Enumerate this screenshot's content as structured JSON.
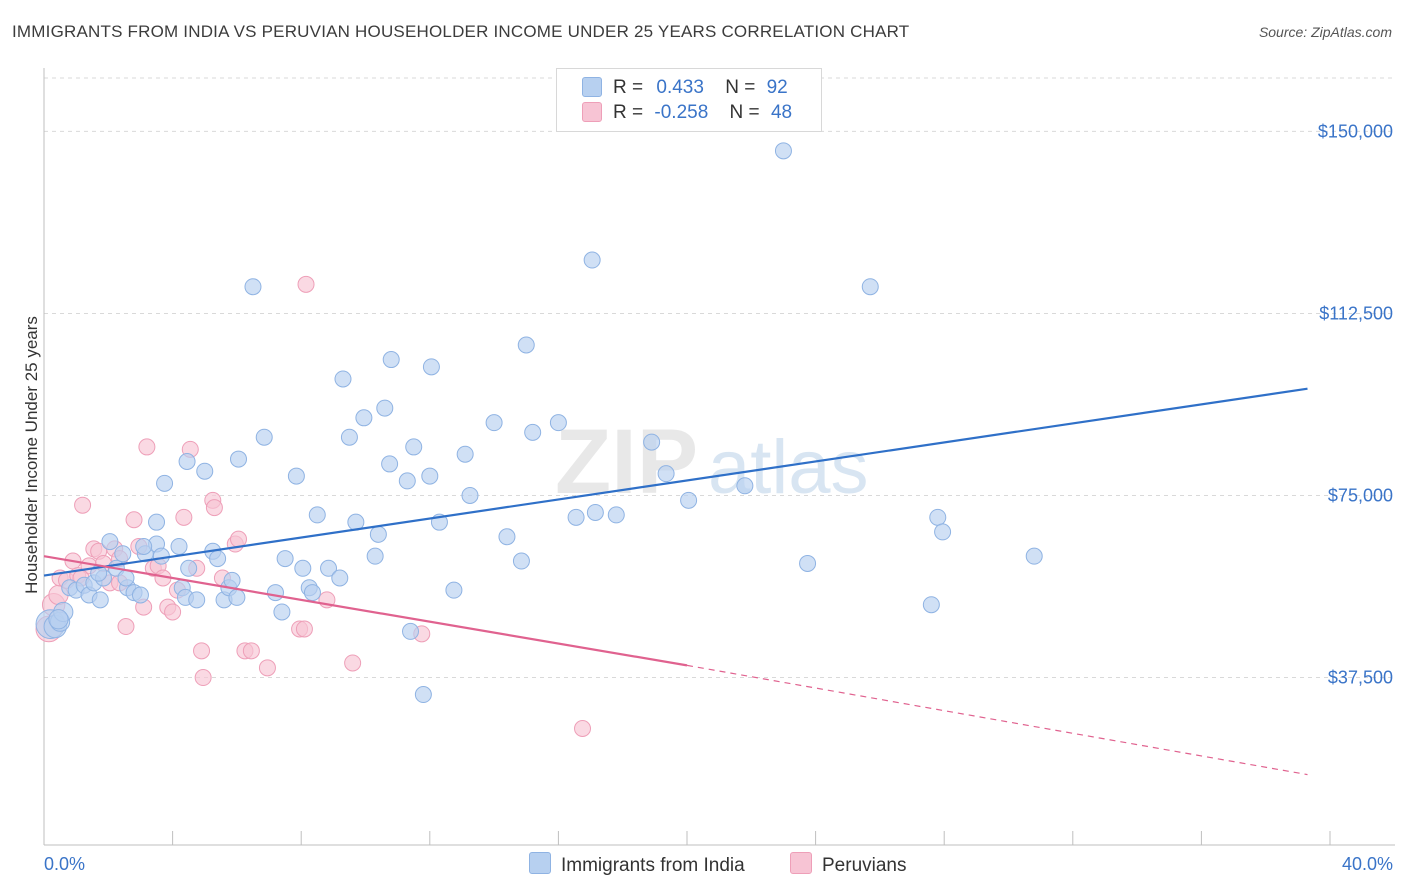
{
  "title": "IMMIGRANTS FROM INDIA VS PERUVIAN HOUSEHOLDER INCOME UNDER 25 YEARS CORRELATION CHART",
  "source": "Source: ZipAtlas.com",
  "watermark": {
    "zip": "ZIP",
    "atlas": "atlas"
  },
  "legend": {
    "rows": [
      {
        "r_label": "R =",
        "r_value": "0.433",
        "n_label": "N =",
        "n_value": "92"
      },
      {
        "r_label": "R =",
        "r_value": "-0.258",
        "n_label": "N =",
        "n_value": "48"
      }
    ]
  },
  "colors": {
    "india_fill": "#b7d0f0",
    "india_stroke": "#8fb3e3",
    "india_line": "#2f70c8",
    "peru_fill": "#f7c4d4",
    "peru_stroke": "#ee9fb8",
    "peru_line": "#e0628f",
    "tick_label": "#3a74c8",
    "grid": "#d9d9d9"
  },
  "chart_data": {
    "type": "scatter",
    "title": "IMMIGRANTS FROM INDIA VS PERUVIAN HOUSEHOLDER INCOME UNDER 25 YEARS CORRELATION CHART",
    "xlabel": "",
    "ylabel": "Householder Income Under 25 years",
    "xlim": [
      0,
      40
    ],
    "ylim": [
      3000,
      161000
    ],
    "x_tick_labels": [
      "0.0%",
      "40.0%"
    ],
    "y_ticks": [
      37500,
      75000,
      112500,
      150000
    ],
    "y_tick_labels": [
      "$37,500",
      "$75,000",
      "$112,500",
      "$150,000"
    ],
    "grid": true,
    "legend_position": "top-center",
    "series": [
      {
        "name": "Immigrants from India",
        "r": 0.433,
        "n": 92,
        "trend": {
          "x0": 0,
          "y0": 58500,
          "x1": 39.3,
          "y1": 97000
        },
        "points": [
          [
            0.2,
            48500,
            18
          ],
          [
            0.35,
            48000,
            14
          ],
          [
            0.5,
            49000,
            12
          ],
          [
            0.6,
            51000,
            12
          ],
          [
            0.8,
            56000,
            10
          ],
          [
            1.0,
            55500,
            10
          ],
          [
            1.25,
            56500,
            10
          ],
          [
            1.4,
            54500,
            10
          ],
          [
            1.55,
            57000,
            10
          ],
          [
            1.75,
            53500,
            10
          ],
          [
            1.85,
            58000,
            10
          ],
          [
            2.05,
            65500,
            10
          ],
          [
            2.25,
            60000,
            10
          ],
          [
            2.45,
            63000,
            10
          ],
          [
            2.6,
            56000,
            10
          ],
          [
            2.8,
            55000,
            10
          ],
          [
            3.0,
            54500,
            10
          ],
          [
            3.15,
            63000,
            10
          ],
          [
            3.5,
            65000,
            10
          ],
          [
            3.5,
            69500,
            10
          ],
          [
            3.65,
            62500,
            10
          ],
          [
            3.75,
            77500,
            10
          ],
          [
            4.2,
            64500,
            10
          ],
          [
            4.3,
            56000,
            10
          ],
          [
            4.4,
            54000,
            10
          ],
          [
            4.5,
            60000,
            10
          ],
          [
            4.45,
            82000,
            10
          ],
          [
            4.75,
            53500,
            10
          ],
          [
            5.0,
            80000,
            10
          ],
          [
            5.25,
            63500,
            10
          ],
          [
            5.4,
            62000,
            10
          ],
          [
            5.6,
            53500,
            10
          ],
          [
            5.75,
            56000,
            10
          ],
          [
            5.85,
            57500,
            10
          ],
          [
            6.0,
            54000,
            10
          ],
          [
            6.05,
            82500,
            10
          ],
          [
            6.5,
            118000,
            10
          ],
          [
            6.85,
            87000,
            10
          ],
          [
            7.2,
            55000,
            10
          ],
          [
            7.4,
            51000,
            10
          ],
          [
            7.5,
            62000,
            10
          ],
          [
            7.85,
            79000,
            10
          ],
          [
            8.05,
            60000,
            10
          ],
          [
            8.25,
            56000,
            10
          ],
          [
            8.35,
            55000,
            10
          ],
          [
            8.5,
            71000,
            10
          ],
          [
            8.85,
            60000,
            10
          ],
          [
            9.2,
            58000,
            10
          ],
          [
            9.3,
            99000,
            10
          ],
          [
            9.5,
            87000,
            10
          ],
          [
            9.7,
            69500,
            10
          ],
          [
            9.95,
            91000,
            10
          ],
          [
            10.3,
            62500,
            10
          ],
          [
            10.4,
            67000,
            10
          ],
          [
            10.6,
            93000,
            10
          ],
          [
            10.8,
            103000,
            10
          ],
          [
            10.75,
            81500,
            10
          ],
          [
            11.3,
            78000,
            10
          ],
          [
            11.4,
            47000,
            10
          ],
          [
            11.5,
            85000,
            10
          ],
          [
            11.8,
            34000,
            10
          ],
          [
            12.0,
            79000,
            10
          ],
          [
            12.05,
            101500,
            10
          ],
          [
            12.3,
            69500,
            10
          ],
          [
            12.75,
            55500,
            10
          ],
          [
            13.1,
            83500,
            10
          ],
          [
            13.25,
            75000,
            10
          ],
          [
            14.0,
            90000,
            10
          ],
          [
            14.4,
            66500,
            10
          ],
          [
            14.85,
            61500,
            10
          ],
          [
            15.0,
            106000,
            10
          ],
          [
            15.2,
            88000,
            10
          ],
          [
            16.0,
            90000,
            10
          ],
          [
            16.55,
            70500,
            10
          ],
          [
            17.05,
            123500,
            10
          ],
          [
            17.15,
            71500,
            10
          ],
          [
            17.8,
            71000,
            10
          ],
          [
            18.9,
            86000,
            10
          ],
          [
            19.35,
            79500,
            10
          ],
          [
            20.05,
            74000,
            10
          ],
          [
            21.8,
            77000,
            10
          ],
          [
            23.0,
            146000,
            10
          ],
          [
            23.75,
            61000,
            10
          ],
          [
            25.7,
            118000,
            10
          ],
          [
            27.6,
            52500,
            10
          ],
          [
            27.8,
            70500,
            10
          ],
          [
            27.95,
            67500,
            10
          ],
          [
            30.8,
            62500,
            10
          ],
          [
            0.45,
            49500,
            12
          ],
          [
            1.7,
            59000,
            10
          ],
          [
            2.55,
            58000,
            10
          ],
          [
            3.1,
            64500,
            10
          ]
        ]
      },
      {
        "name": "Peruvians",
        "r": -0.258,
        "n": 48,
        "trend": {
          "x0": 0,
          "y0": 62500,
          "x1": 20,
          "y1": 40000,
          "x2": 39.3,
          "y2": 17500
        },
        "points": [
          [
            0.15,
            47500,
            16
          ],
          [
            0.3,
            52500,
            14
          ],
          [
            0.45,
            54500,
            12
          ],
          [
            0.5,
            58000,
            10
          ],
          [
            0.7,
            57500,
            10
          ],
          [
            0.9,
            61500,
            10
          ],
          [
            1.05,
            58500,
            10
          ],
          [
            1.2,
            73000,
            10
          ],
          [
            1.4,
            60500,
            10
          ],
          [
            1.55,
            64000,
            10
          ],
          [
            1.7,
            63500,
            10
          ],
          [
            1.85,
            61000,
            10
          ],
          [
            2.05,
            57000,
            10
          ],
          [
            2.2,
            64000,
            10
          ],
          [
            2.35,
            62000,
            10
          ],
          [
            2.55,
            48000,
            10
          ],
          [
            2.8,
            70000,
            10
          ],
          [
            2.95,
            64500,
            10
          ],
          [
            3.1,
            52000,
            10
          ],
          [
            3.2,
            85000,
            10
          ],
          [
            3.4,
            60000,
            10
          ],
          [
            3.55,
            60500,
            10
          ],
          [
            3.7,
            58000,
            10
          ],
          [
            3.85,
            52000,
            10
          ],
          [
            4.0,
            51000,
            10
          ],
          [
            4.15,
            55500,
            10
          ],
          [
            4.35,
            70500,
            10
          ],
          [
            4.55,
            84500,
            10
          ],
          [
            4.75,
            60000,
            10
          ],
          [
            4.9,
            43000,
            10
          ],
          [
            4.95,
            37500,
            10
          ],
          [
            5.25,
            74000,
            10
          ],
          [
            5.3,
            72500,
            10
          ],
          [
            5.55,
            58000,
            10
          ],
          [
            5.95,
            65000,
            10
          ],
          [
            6.05,
            66000,
            10
          ],
          [
            6.25,
            43000,
            10
          ],
          [
            6.45,
            43000,
            10
          ],
          [
            6.95,
            39500,
            10
          ],
          [
            7.95,
            47500,
            10
          ],
          [
            8.1,
            47500,
            10
          ],
          [
            8.15,
            118500,
            10
          ],
          [
            8.8,
            53500,
            10
          ],
          [
            9.6,
            40500,
            10
          ],
          [
            11.75,
            46500,
            10
          ],
          [
            16.75,
            27000,
            10
          ],
          [
            1.15,
            58000,
            10
          ],
          [
            2.35,
            57000,
            10
          ]
        ]
      }
    ]
  }
}
